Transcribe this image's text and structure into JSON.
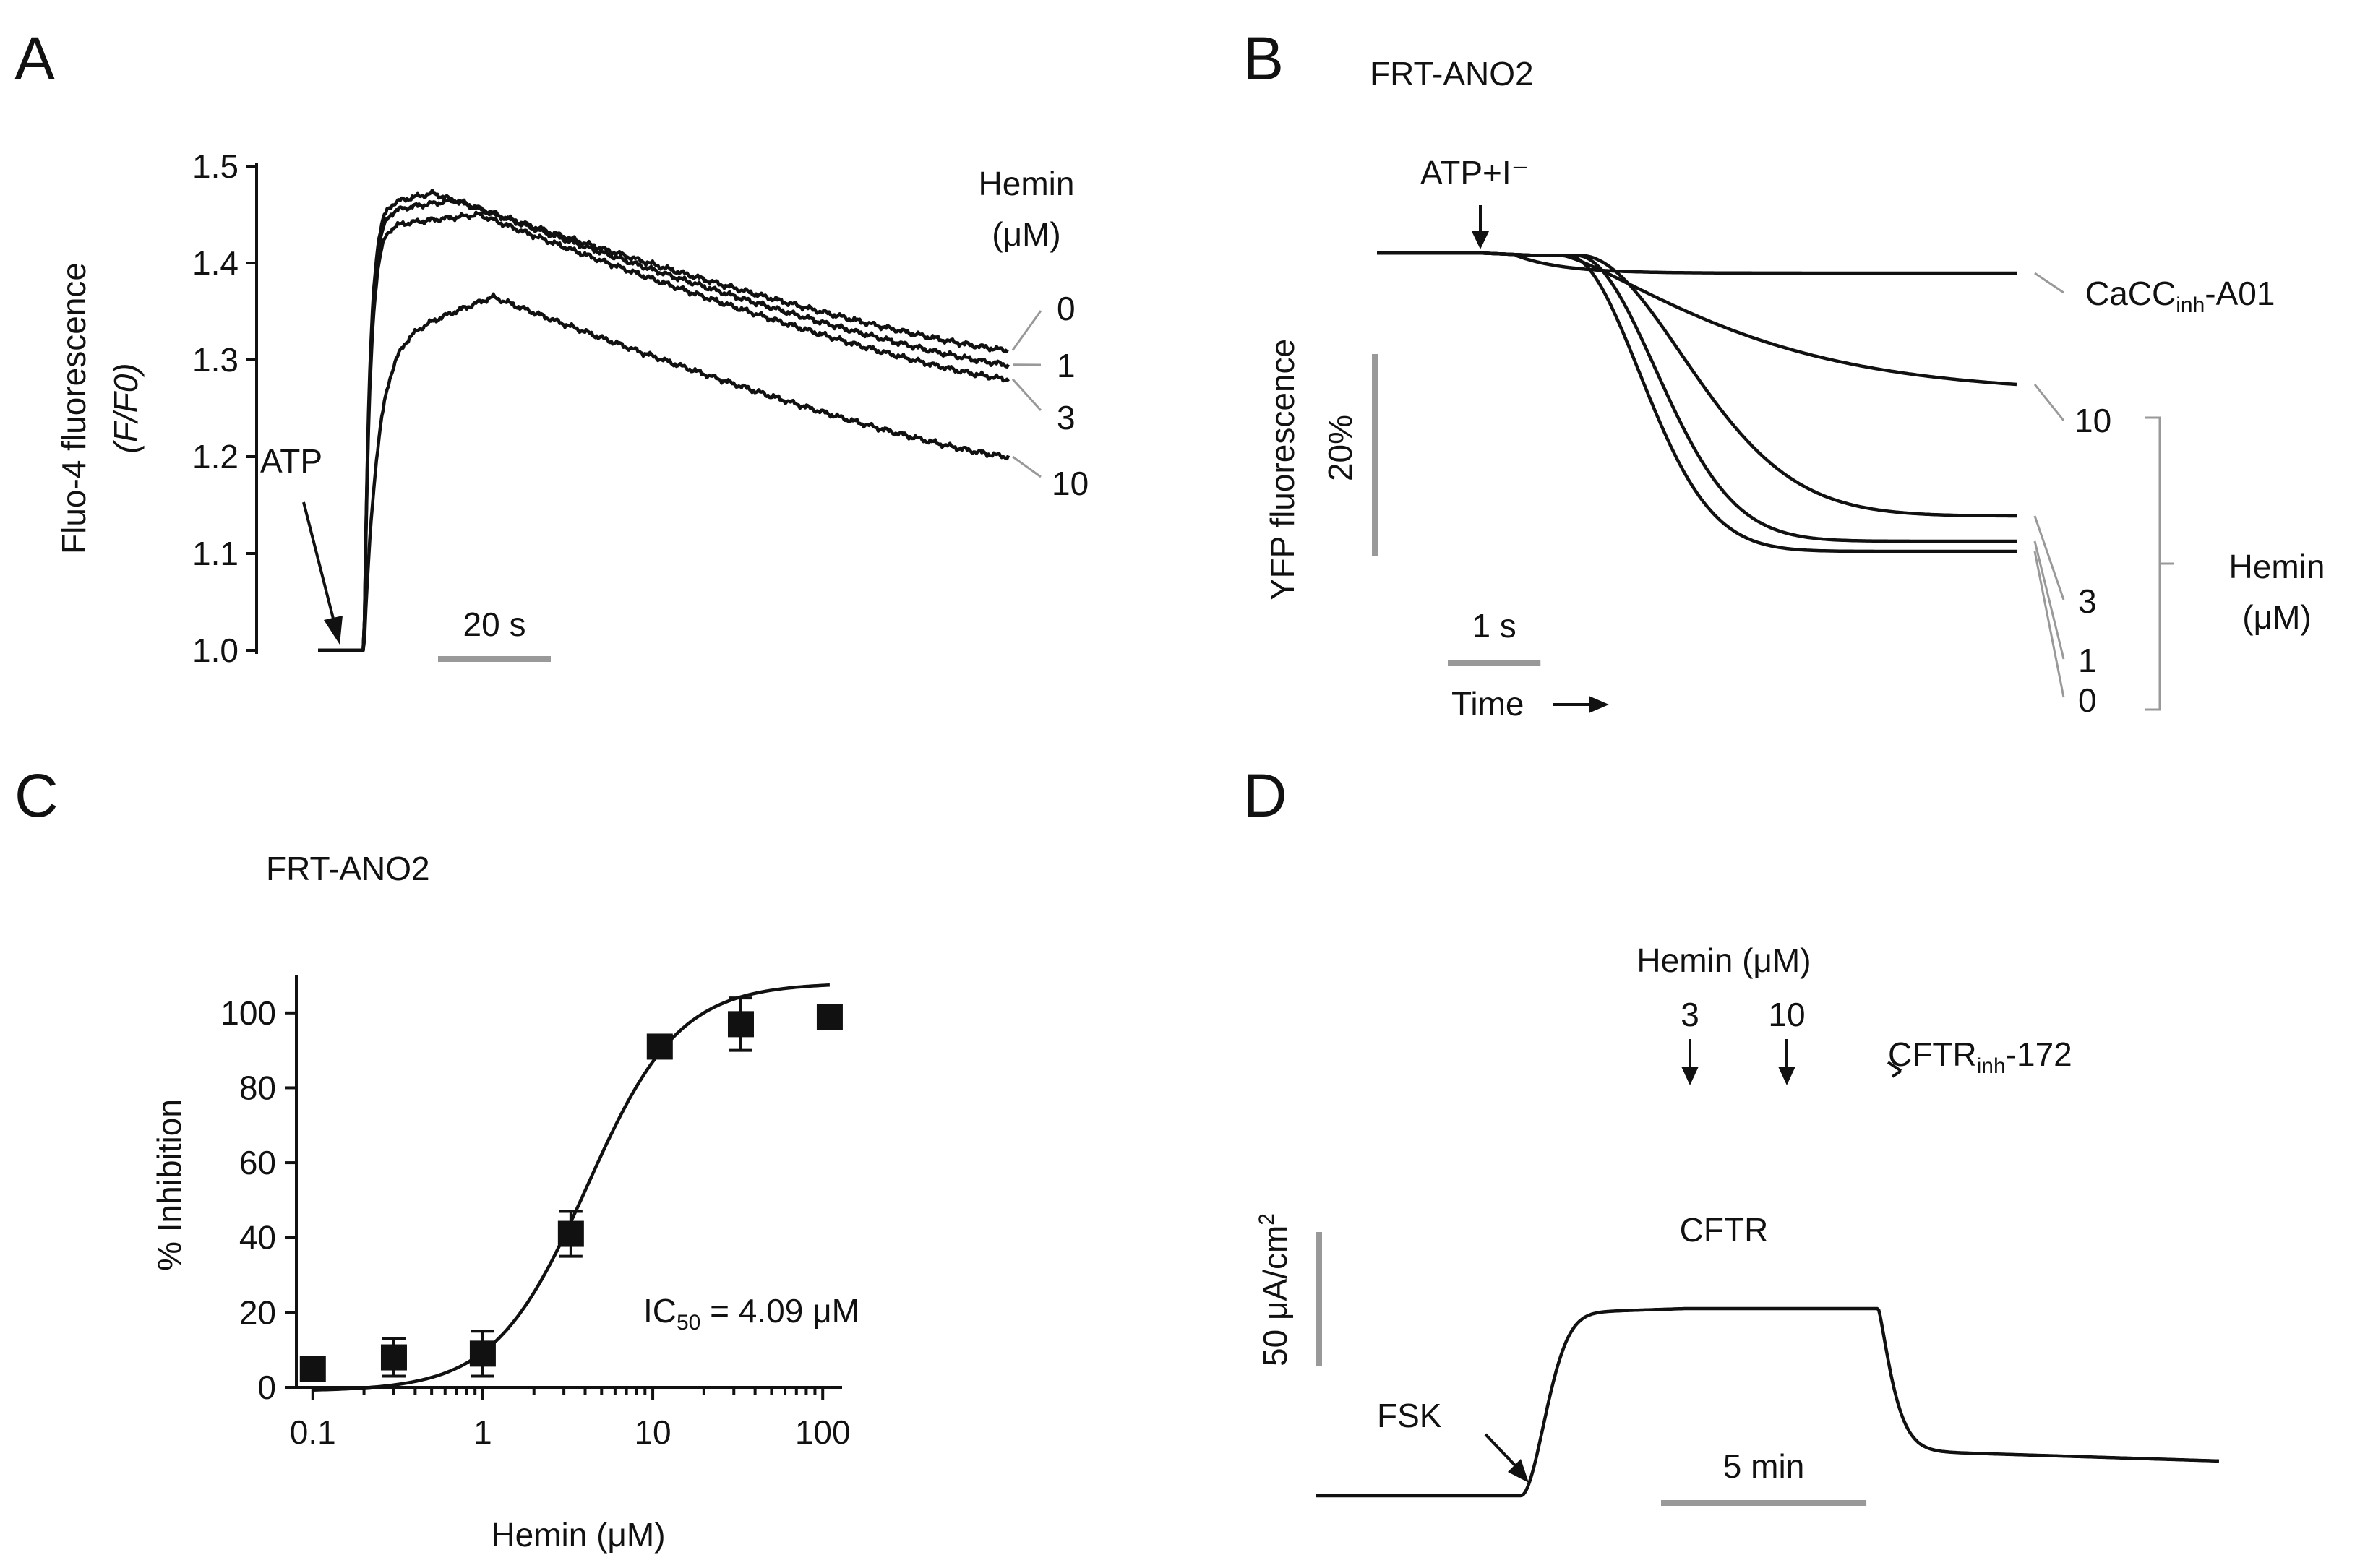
{
  "panels": {
    "A": {
      "letter": "A"
    },
    "B": {
      "letter": "B",
      "cell_line": "FRT-ANO2"
    },
    "C": {
      "letter": "C",
      "cell_line": "FRT-ANO2"
    },
    "D": {
      "letter": "D"
    }
  },
  "chart_data": [
    {
      "panel": "A",
      "type": "line",
      "ylabel": "Fluo-4 fluorescence",
      "ylabel_sub": "(F/F0)",
      "yticks": [
        "1.0",
        "1.1",
        "1.2",
        "1.3",
        "1.4",
        "1.5"
      ],
      "ylim": [
        1.0,
        1.5
      ],
      "xlim_s": [
        0,
        150
      ],
      "legend_title": [
        "Hemin",
        "(μM)"
      ],
      "stimulus_label": "ATP",
      "stimulus_time_s": 10,
      "scalebar_label": "20 s",
      "scalebar_s": 20,
      "series": [
        {
          "name": "0",
          "label": "0",
          "peak_time_s": 25,
          "peak": 1.472,
          "end": 1.31
        },
        {
          "name": "1",
          "label": "1",
          "peak_time_s": 30,
          "peak": 1.465,
          "end": 1.295
        },
        {
          "name": "3",
          "label": "3",
          "peak_time_s": 35,
          "peak": 1.45,
          "end": 1.28
        },
        {
          "name": "10",
          "label": "10",
          "peak_time_s": 38,
          "peak": 1.365,
          "end": 1.2
        }
      ]
    },
    {
      "panel": "B",
      "type": "line",
      "ylabel": "YFP fluorescence",
      "ybar_label": "20%",
      "ybar_percent": 20,
      "xlabel": "Time",
      "scalebar_label": "1 s",
      "scalebar_s": 1,
      "xlim_s": [
        0,
        6.9
      ],
      "stimulus_label": "ATP+I⁻",
      "stimulus_time_s": 1.1,
      "group_label": [
        "Hemin",
        "(μM)"
      ],
      "series": [
        {
          "name": "CaCCinh-A01",
          "label": "CaCC",
          "label_sub": "inh",
          "label_suffix": "-A01",
          "final_drop_percent": 2
        },
        {
          "name": "10",
          "label": "10",
          "final_drop_percent": 13
        },
        {
          "name": "3",
          "label": "3",
          "final_drop_percent": 26
        },
        {
          "name": "1",
          "label": "1",
          "final_drop_percent": 28.5
        },
        {
          "name": "0",
          "label": "0",
          "final_drop_percent": 29.5
        }
      ]
    },
    {
      "panel": "C",
      "type": "scatter",
      "xlabel": "Hemin (μM)",
      "ylabel": "% Inhibition",
      "xscale": "log",
      "xticks": [
        "0.1",
        "1",
        "10",
        "100"
      ],
      "yticks": [
        "0",
        "20",
        "40",
        "60",
        "80",
        "100"
      ],
      "xlim": [
        0.08,
        130
      ],
      "ylim": [
        0,
        110
      ],
      "points": [
        {
          "x": 0.1,
          "y": 5,
          "err": 0
        },
        {
          "x": 0.3,
          "y": 8,
          "err": 5
        },
        {
          "x": 1,
          "y": 9,
          "err": 6
        },
        {
          "x": 3.3,
          "y": 41,
          "err": 6
        },
        {
          "x": 11,
          "y": 91,
          "err": 0
        },
        {
          "x": 33,
          "y": 97,
          "err": 7
        },
        {
          "x": 110,
          "y": 99,
          "err": 0
        }
      ],
      "fit": {
        "model": "hill",
        "ic50": 4.09,
        "hill": 1.6,
        "top": 108,
        "bottom": -1
      },
      "annotation": {
        "prefix": "IC",
        "sub": "50",
        "value": " = 4.09 μM"
      }
    },
    {
      "panel": "D",
      "type": "line",
      "ybar_label": "50 μA/cm",
      "ybar_sup": "2",
      "ybar_uA_cm2": 50,
      "scalebar_label": "5 min",
      "scalebar_min": 5,
      "xlim_min": [
        0,
        22
      ],
      "trace": {
        "baseline_uA_cm2": 0,
        "plateau_uA_cm2": 70,
        "after_inhibitor_uA_cm2": 13,
        "fsk_time_min": 5,
        "inhibitor_time_min": 13.7
      },
      "annotations": {
        "stimulus": "FSK",
        "channel": "CFTR",
        "hemin_title": "Hemin (μM)",
        "dose_1": "3",
        "dose_2": "10",
        "inhibitor": "CFTR",
        "inhibitor_sub": "inh",
        "inhibitor_suffix": "-172"
      }
    }
  ]
}
